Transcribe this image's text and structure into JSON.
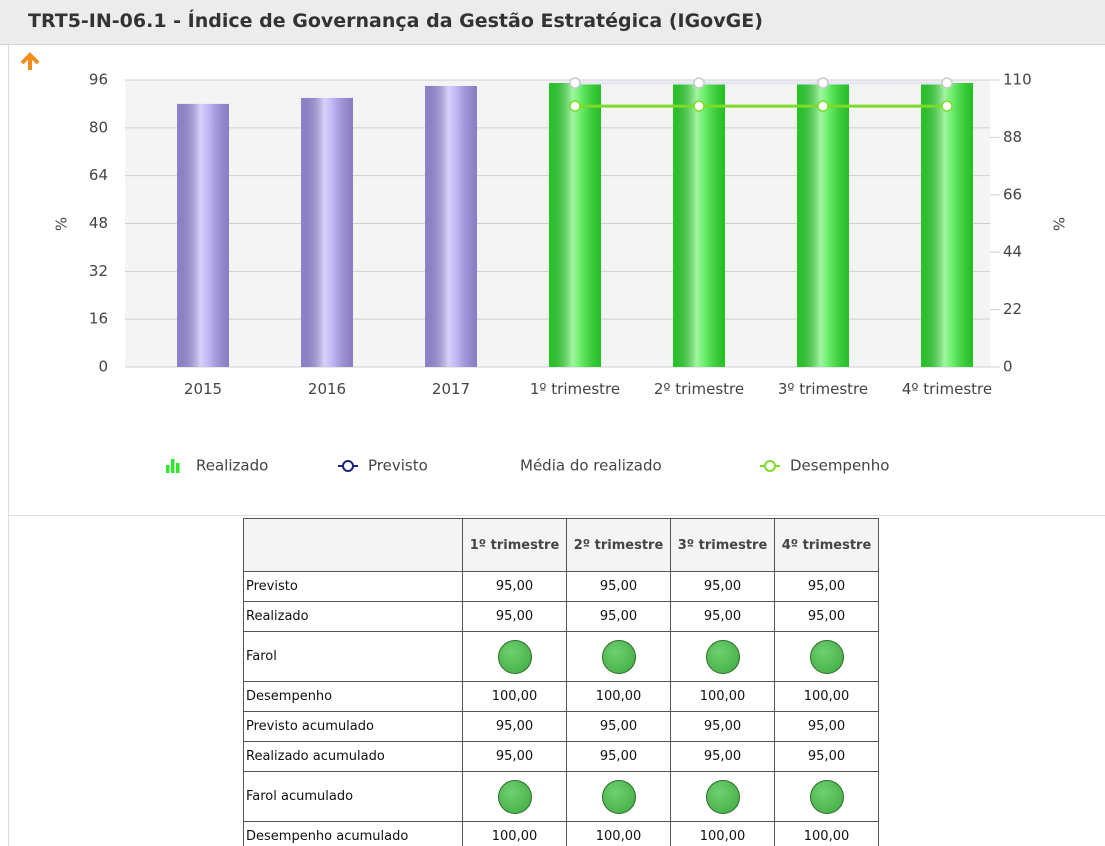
{
  "header": {
    "title": "TRT5-IN-06.1 - Índice de Governança da Gestão Estratégica (IGovGE)"
  },
  "chart_data": {
    "type": "bar",
    "categories": [
      "2015",
      "2016",
      "2017",
      "1º trimestre",
      "2º trimestre",
      "3º trimestre",
      "4º trimestre"
    ],
    "series": [
      {
        "name": "Realizado",
        "type": "bar",
        "color": "#2ee82e",
        "colors": [
          "#a898f0",
          "#a898f0",
          "#a898f0",
          "#2ee82e",
          "#2ee82e",
          "#2ee82e",
          "#2ee82e"
        ],
        "values": [
          88,
          90,
          94,
          95,
          95,
          95,
          95
        ]
      },
      {
        "name": "Previsto",
        "type": "line",
        "color": "#1a237e",
        "line_color": "#e4e6f4",
        "values": [
          null,
          null,
          null,
          95,
          95,
          95,
          95
        ]
      },
      {
        "name": "Média do realizado",
        "values": [
          null,
          null,
          null,
          null,
          null,
          null,
          null
        ]
      },
      {
        "name": "Desempenho",
        "type": "line",
        "axis": "y2",
        "color": "#7ddc2a",
        "line_color": "#7ddc2a",
        "values": [
          null,
          null,
          null,
          100,
          100,
          100,
          100
        ]
      }
    ],
    "ylabel": "%",
    "y2label": "%",
    "ylim": [
      0,
      96
    ],
    "yticks": [
      0,
      16,
      32,
      48,
      64,
      80,
      96
    ],
    "y2lim": [
      0,
      110
    ],
    "y2ticks": [
      0,
      22,
      44,
      66,
      88,
      110
    ],
    "grid": true
  },
  "table": {
    "columns": [
      "",
      "1º trimestre",
      "2º trimestre",
      "3º trimestre",
      "4º trimestre"
    ],
    "rows": [
      {
        "label": "Previsto",
        "values": [
          "95,00",
          "95,00",
          "95,00",
          "95,00"
        ]
      },
      {
        "label": "Realizado",
        "values": [
          "95,00",
          "95,00",
          "95,00",
          "95,00"
        ]
      },
      {
        "label": "Farol",
        "lights": [
          "#3daa3d",
          "#3daa3d",
          "#3daa3d",
          "#3daa3d"
        ]
      },
      {
        "label": "Desempenho",
        "values": [
          "100,00",
          "100,00",
          "100,00",
          "100,00"
        ]
      },
      {
        "label": "Previsto acumulado",
        "values": [
          "95,00",
          "95,00",
          "95,00",
          "95,00"
        ]
      },
      {
        "label": "Realizado acumulado",
        "values": [
          "95,00",
          "95,00",
          "95,00",
          "95,00"
        ]
      },
      {
        "label": "Farol acumulado",
        "lights": [
          "#3daa3d",
          "#3daa3d",
          "#3daa3d",
          "#3daa3d"
        ]
      },
      {
        "label": "Desempenho acumulado",
        "values": [
          "100,00",
          "100,00",
          "100,00",
          "100,00"
        ]
      }
    ]
  }
}
